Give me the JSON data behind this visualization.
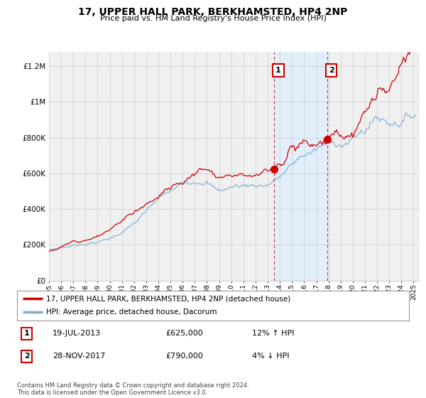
{
  "title": "17, UPPER HALL PARK, BERKHAMSTED, HP4 2NP",
  "subtitle": "Price paid vs. HM Land Registry's House Price Index (HPI)",
  "ytick_values": [
    0,
    200000,
    400000,
    600000,
    800000,
    1000000,
    1200000
  ],
  "ylim": [
    0,
    1280000
  ],
  "xlim_start": 1995.0,
  "xlim_end": 2025.5,
  "red_line_color": "#cc0000",
  "blue_line_color": "#7dadd4",
  "blue_fill_color": "#ddeeff",
  "transaction1_x": 2013.54,
  "transaction1_y": 625000,
  "transaction1_label": "1",
  "transaction2_x": 2017.91,
  "transaction2_y": 790000,
  "transaction2_label": "2",
  "legend_red_label": "17, UPPER HALL PARK, BERKHAMSTED, HP4 2NP (detached house)",
  "legend_blue_label": "HPI: Average price, detached house, Dacorum",
  "note1_num": "1",
  "note1_date": "19-JUL-2013",
  "note1_price": "£625,000",
  "note1_hpi": "12% ↑ HPI",
  "note2_num": "2",
  "note2_date": "28-NOV-2017",
  "note2_price": "£790,000",
  "note2_hpi": "4% ↓ HPI",
  "footer": "Contains HM Land Registry data © Crown copyright and database right 2024.\nThis data is licensed under the Open Government Licence v3.0.",
  "bg_color": "#ffffff",
  "plot_bg_color": "#f0f0f0"
}
